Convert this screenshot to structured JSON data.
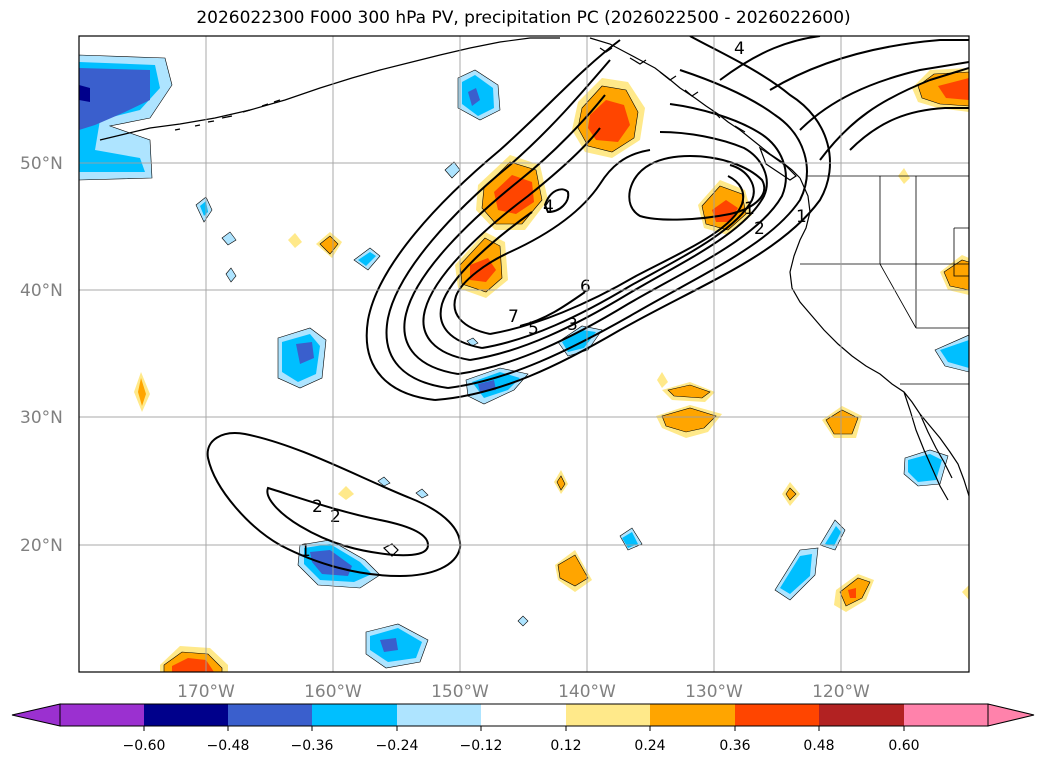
{
  "title": "2026022300 F000 300 hPa PV, precipitation PC (2026022500 - 2026022600)",
  "lat_labels": [
    "50°N",
    "40°N",
    "30°N",
    "20°N"
  ],
  "lon_labels": [
    "170°W",
    "160°W",
    "150°W",
    "140°W",
    "130°W",
    "120°W"
  ],
  "colorbar": {
    "ticks": [
      "−0.60",
      "−0.48",
      "−0.36",
      "−0.24",
      "−0.12",
      "0.12",
      "0.24",
      "0.36",
      "0.48",
      "0.60"
    ],
    "colors": [
      "#9b30d0",
      "#00008b",
      "#3a5fcd",
      "#00bfff",
      "#aee4ff",
      "#ffffff",
      "#ffe98a",
      "#ffa500",
      "#ff4500",
      "#b22222",
      "#ff82ab"
    ]
  },
  "contour_labels": [
    "4",
    "4",
    "6",
    "7",
    "5",
    "3",
    "2",
    "1",
    "1",
    "2",
    "2",
    "1"
  ],
  "colors": {
    "neg_light": "#aee4ff",
    "neg_mid": "#00bfff",
    "neg_dark": "#3a5fcd",
    "neg_darkest": "#00008b",
    "pos_light": "#ffe98a",
    "pos_mid": "#ffa500",
    "pos_dark": "#ff4500",
    "pos_darkest": "#b22222"
  }
}
